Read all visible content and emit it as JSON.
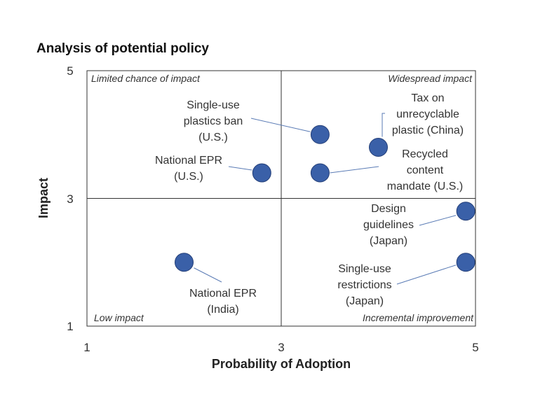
{
  "chart_data": {
    "type": "scatter",
    "title": "Analysis of potential policy",
    "xlabel": "Probability of Adoption",
    "ylabel": "Impact",
    "xlim": [
      1,
      5
    ],
    "ylim": [
      1,
      5
    ],
    "xticks": [
      "1",
      "3",
      "5"
    ],
    "yticks": [
      "1",
      "3",
      "5"
    ],
    "dividers": {
      "x": 3,
      "y": 3
    },
    "quadrants": {
      "top_left": "Limited chance of impact",
      "top_right": "Widespread impact",
      "bottom_left": "Low impact",
      "bottom_right": "Incremental improvement"
    },
    "points": [
      {
        "id": "national-epr-india",
        "label": [
          "National EPR",
          "(India)"
        ],
        "x": 2.0,
        "y": 2.0
      },
      {
        "id": "national-epr-us",
        "label": [
          "National EPR",
          "(U.S.)"
        ],
        "x": 2.8,
        "y": 3.4
      },
      {
        "id": "single-use-plastics-ban-us",
        "label": [
          "Single-use",
          "plastics ban",
          "(U.S.)"
        ],
        "x": 3.4,
        "y": 4.0
      },
      {
        "id": "recycled-content-mandate-us",
        "label": [
          "Recycled",
          "content",
          "mandate (U.S.)"
        ],
        "x": 3.4,
        "y": 3.4
      },
      {
        "id": "tax-unrecyclable-plastic-china",
        "label": [
          "Tax on",
          "unrecyclable",
          "plastic (China)"
        ],
        "x": 4.0,
        "y": 3.8
      },
      {
        "id": "design-guidelines-japan",
        "label": [
          "Design",
          "guidelines",
          "(Japan)"
        ],
        "x": 4.9,
        "y": 2.8
      },
      {
        "id": "single-use-restrictions-japan",
        "label": [
          "Single-use",
          "restrictions",
          "(Japan)"
        ],
        "x": 4.9,
        "y": 2.0
      }
    ]
  },
  "colors": {
    "point_fill": "#3a60a8",
    "point_stroke": "#243f78",
    "leader_line": "#5a7bb5",
    "axis": "#333333"
  }
}
